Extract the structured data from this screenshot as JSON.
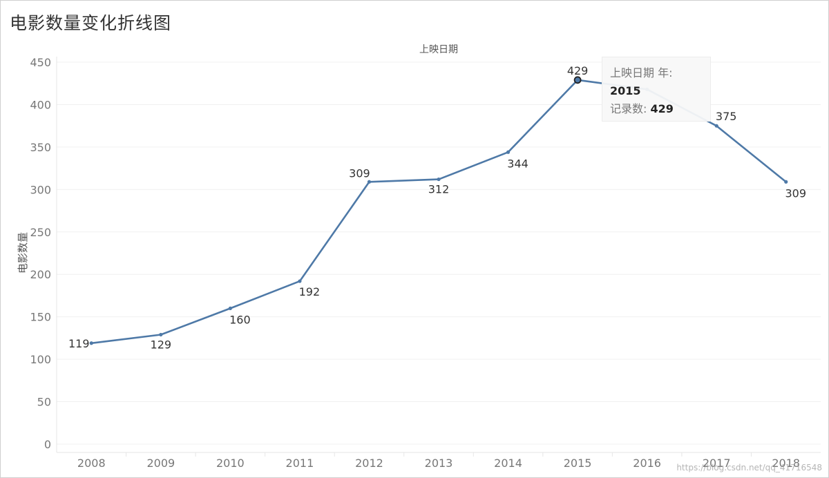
{
  "title": "电影数量变化折线图",
  "chart_data": {
    "type": "line",
    "x_axis_title": "上映日期",
    "ylabel": "电影数量",
    "categories": [
      "2008",
      "2009",
      "2010",
      "2011",
      "2012",
      "2013",
      "2014",
      "2015",
      "2016",
      "2017",
      "2018"
    ],
    "values": [
      119,
      129,
      160,
      192,
      309,
      312,
      344,
      429,
      418,
      375,
      309
    ],
    "data_labels": [
      "119",
      "129",
      "160",
      "192",
      "309",
      "312",
      "344",
      "429",
      "",
      "375",
      "309"
    ],
    "yticks": [
      0,
      50,
      100,
      150,
      200,
      250,
      300,
      350,
      400,
      450
    ],
    "ylim": [
      0,
      450
    ],
    "grid": true,
    "line_color": "#4e79a7"
  },
  "tooltip": {
    "field_label": "上映日期 年:",
    "field_value": "2015",
    "count_label": "记录数:",
    "count_value": "429"
  },
  "watermark": "https://blog.csdn.net/qq_41716548"
}
